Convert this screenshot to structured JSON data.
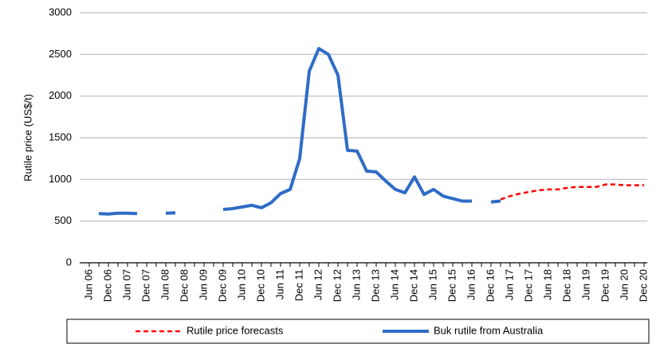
{
  "chart_data": {
    "type": "line",
    "y_label": "Rutile price (US$/t)",
    "categories": [
      "Jun 06",
      null,
      "Dec 06",
      null,
      "Jun 07",
      null,
      "Dec 07",
      null,
      "Jun 08",
      null,
      "Dec 08",
      null,
      "Jun 09",
      null,
      "Dec 09",
      null,
      "Jun 10",
      null,
      "Dec 10",
      null,
      "Jun 11",
      null,
      "Dec 11",
      null,
      "Jun 12",
      null,
      "Dec 12",
      null,
      "Jun 13",
      null,
      "Dec 13",
      null,
      "Jun 14",
      null,
      "Dec 14",
      null,
      "Jun 15",
      null,
      "Dec 15",
      null,
      "Jun 16",
      null,
      "Dec 16",
      null,
      "Jun 17",
      null,
      "Dec 17",
      null,
      "Jun 18",
      null,
      "Dec 18",
      null,
      "Jun 19",
      null,
      "Dec 19",
      null,
      "Jun 20",
      null,
      "Dec 20"
    ],
    "series": [
      {
        "name": "Rutile price forecasts",
        "color": "#ff0000",
        "dashed": true,
        "values": [
          null,
          null,
          null,
          null,
          null,
          null,
          null,
          null,
          null,
          null,
          null,
          null,
          null,
          null,
          null,
          null,
          null,
          null,
          null,
          null,
          null,
          null,
          null,
          null,
          null,
          null,
          null,
          null,
          null,
          null,
          null,
          null,
          null,
          null,
          null,
          null,
          null,
          null,
          null,
          null,
          null,
          null,
          null,
          760,
          800,
          830,
          850,
          870,
          880,
          880,
          900,
          910,
          910,
          910,
          940,
          940,
          930,
          930,
          930
        ]
      },
      {
        "name": "Buk rutile from Australia",
        "color": "#2e6cc7",
        "dashed": false,
        "values": [
          null,
          590,
          585,
          595,
          595,
          590,
          null,
          null,
          595,
          600,
          null,
          null,
          null,
          null,
          640,
          650,
          670,
          690,
          660,
          720,
          830,
          880,
          1250,
          2300,
          2570,
          2500,
          2250,
          1350,
          1340,
          1100,
          1090,
          980,
          880,
          840,
          1030,
          820,
          880,
          800,
          770,
          740,
          740,
          null,
          730,
          740,
          null,
          null,
          null,
          null,
          null,
          null,
          null,
          null,
          null,
          null,
          null,
          null,
          null,
          null,
          null
        ]
      }
    ],
    "ylim": [
      0,
      3000
    ],
    "yticks": [
      0,
      500,
      1000,
      1500,
      2000,
      2500,
      3000
    ],
    "grid": true
  }
}
